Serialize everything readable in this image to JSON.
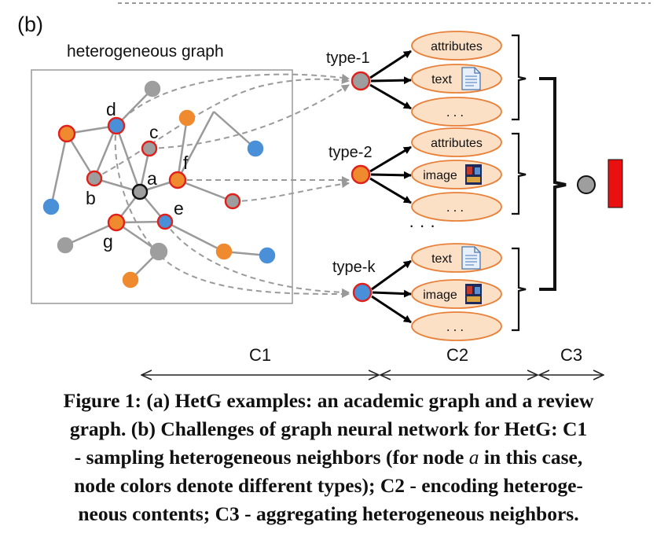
{
  "panel_label": "(b)",
  "graph_title": "heterogeneous graph",
  "graph_node_labels": {
    "a": "a",
    "b": "b",
    "c": "c",
    "d": "d",
    "e": "e",
    "f": "f",
    "g": "g"
  },
  "types": [
    {
      "label": "type-1",
      "node_color": "#9e9e9e",
      "contents": [
        "attributes",
        "text",
        "..."
      ]
    },
    {
      "label": "type-2",
      "node_color": "#f08a2e",
      "contents": [
        "attributes",
        "image",
        "..."
      ]
    },
    {
      "label": "type-k",
      "node_color": "#4a90d9",
      "contents": [
        "text",
        "image",
        "..."
      ]
    }
  ],
  "middle_dots": "·  ·  ·",
  "stages": {
    "c1": "C1",
    "c2": "C2",
    "c3": "C3"
  },
  "colors": {
    "gray_node": "#9e9e9e",
    "orange_node": "#f08a2e",
    "blue_node": "#4a90d9",
    "red_outline": "#e0201b",
    "content_fill": "#fbe0c6",
    "content_stroke": "#e8803a",
    "output_bar": "#e81010"
  },
  "caption": {
    "line1": "Figure 1: (a) HetG examples: an academic graph and a review",
    "line2": "graph. (b) Challenges of graph neural network for HetG: C1",
    "line3a": "- sampling heterogeneous neighbors (for node ",
    "line3_italic": "a",
    "line3b": " in this case,",
    "line4": "node colors denote different types); C2 - encoding heteroge-",
    "line5": "neous contents; C3 - aggregating heterogeneous neighbors."
  }
}
